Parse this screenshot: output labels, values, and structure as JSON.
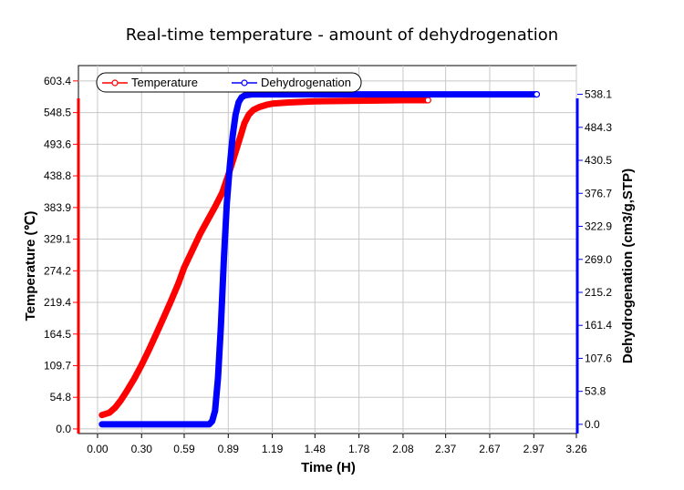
{
  "chart_data": {
    "type": "line",
    "title": "Real-time temperature - amount of dehydrogenation",
    "xlabel": "Time (H)",
    "ylabel_left": "Temperature (℃)",
    "ylabel_right": "Dehydrogenation (cm3/g,STP)",
    "xlim": [
      -0.13,
      3.26
    ],
    "ylim_left": [
      -8,
      630
    ],
    "ylim_right": [
      -15,
      585
    ],
    "x_ticks": [
      "0.00",
      "0.30",
      "0.59",
      "0.89",
      "1.19",
      "1.48",
      "1.78",
      "2.08",
      "2.37",
      "2.67",
      "2.97",
      "3.26"
    ],
    "y_left_ticks": [
      "0.0",
      "54.8",
      "109.7",
      "164.5",
      "219.4",
      "274.2",
      "329.1",
      "383.9",
      "438.8",
      "493.6",
      "548.5",
      "603.4"
    ],
    "y_right_ticks": [
      "0.0",
      "53.8",
      "107.6",
      "161.4",
      "215.2",
      "269.0",
      "322.9",
      "376.7",
      "430.5",
      "484.3",
      "538.1"
    ],
    "grid": true,
    "legend_position": "top-left",
    "series": [
      {
        "name": "Temperature",
        "axis": "left",
        "color": "#ff0000",
        "x": [
          0.03,
          0.08,
          0.12,
          0.16,
          0.2,
          0.25,
          0.3,
          0.35,
          0.4,
          0.45,
          0.5,
          0.55,
          0.59,
          0.65,
          0.7,
          0.75,
          0.8,
          0.85,
          0.89,
          0.93,
          0.97,
          1.0,
          1.03,
          1.06,
          1.1,
          1.15,
          1.19,
          1.3,
          1.48,
          1.78,
          2.08,
          2.25
        ],
        "y": [
          24,
          28,
          37,
          50,
          66,
          87,
          111,
          137,
          165,
          193,
          222,
          252,
          280,
          312,
          339,
          362,
          385,
          410,
          440,
          472,
          505,
          530,
          545,
          553,
          558,
          562,
          564,
          566,
          568,
          569,
          570,
          570
        ]
      },
      {
        "name": "Dehydrogenation",
        "axis": "right",
        "color": "#0000ff",
        "x": [
          0.03,
          0.2,
          0.4,
          0.6,
          0.7,
          0.76,
          0.78,
          0.8,
          0.82,
          0.84,
          0.86,
          0.88,
          0.9,
          0.92,
          0.94,
          0.96,
          0.98,
          1.0,
          1.02,
          1.05,
          1.1,
          1.19,
          1.48,
          1.78,
          2.08,
          2.37,
          2.67,
          2.97,
          2.99
        ],
        "y": [
          0,
          0,
          0,
          0,
          0,
          0,
          5,
          22,
          75,
          160,
          270,
          360,
          420,
          470,
          505,
          525,
          533,
          536,
          537,
          538,
          538,
          538,
          538,
          538,
          538,
          538,
          538,
          538,
          538
        ]
      }
    ]
  }
}
